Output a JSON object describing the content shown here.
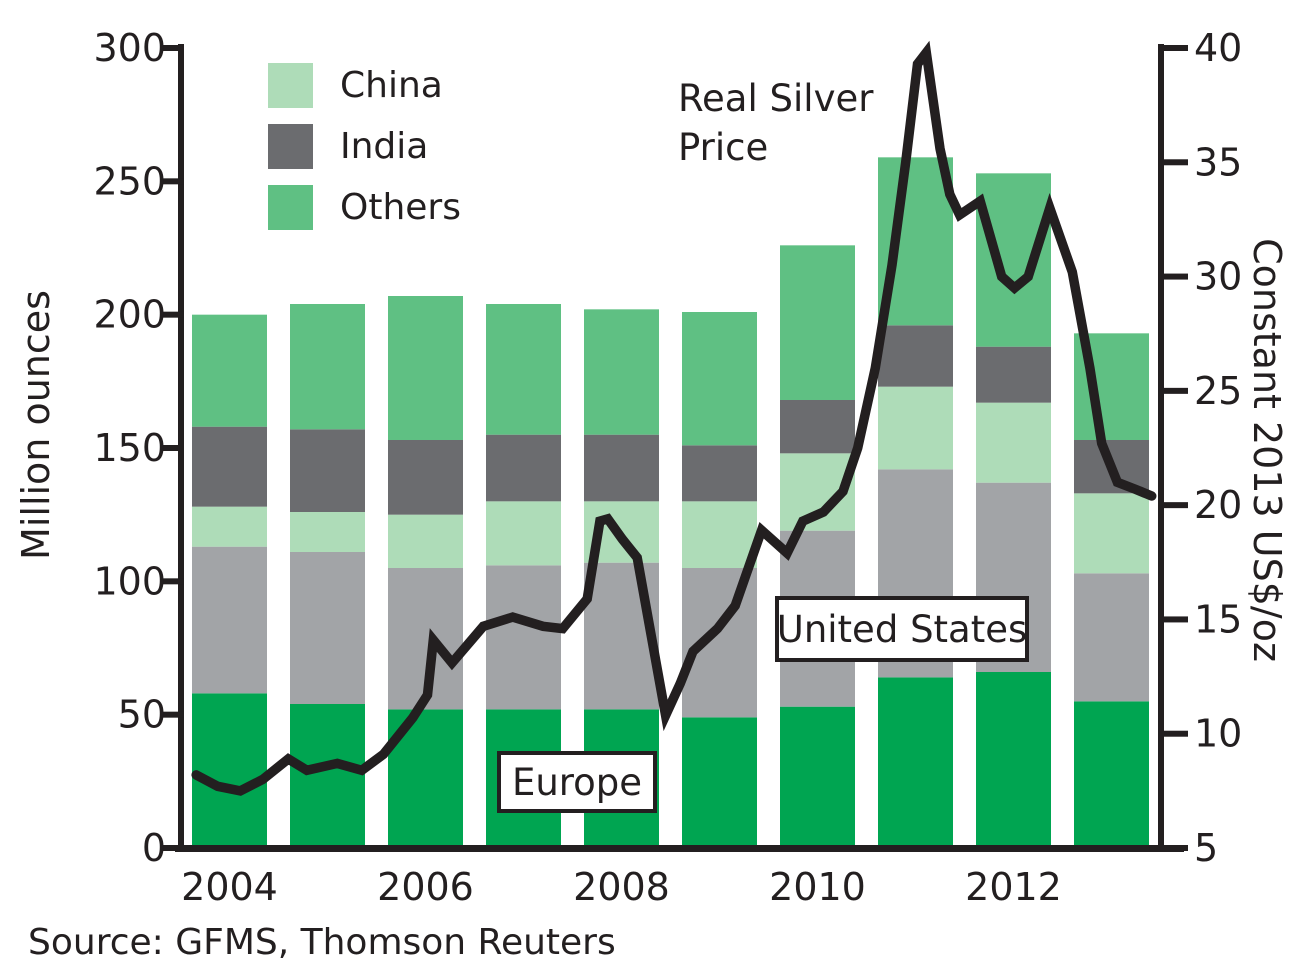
{
  "annotation": {
    "text": "Real Silver Price"
  },
  "region_labels": {
    "europe": "Europe",
    "united_states": "United States"
  },
  "source": "Source: GFMS, Thomson Reuters",
  "legend": [
    {
      "label": "China",
      "color": "#aedcb8"
    },
    {
      "label": "India",
      "color": "#6b6c6f"
    },
    {
      "label": "Others",
      "color": "#5fc083"
    }
  ],
  "axes": {
    "left": {
      "title": "Million ounces",
      "ticks": [
        0,
        50,
        100,
        150,
        200,
        250,
        300
      ],
      "range": [
        0,
        300
      ]
    },
    "right": {
      "title": "Constant 2013 US$/oz",
      "ticks": [
        5,
        10,
        15,
        20,
        25,
        30,
        35,
        40
      ],
      "range": [
        5,
        40
      ]
    },
    "x": {
      "tick_labels": [
        "2004",
        "2006",
        "2008",
        "2010",
        "2012"
      ],
      "tick_years": [
        2004,
        2006,
        2008,
        2010,
        2012
      ]
    }
  },
  "colors": {
    "axis": "#231f20",
    "text": "#231f20",
    "line": "#231f20",
    "europe": "#00a551",
    "united_states": "#a2a4a7",
    "china": "#aedcb8",
    "india": "#6b6c6f",
    "others": "#5fc083"
  },
  "chart_data": {
    "type": "bar+line",
    "title": "",
    "categories": [
      2004,
      2005,
      2006,
      2007,
      2008,
      2009,
      2010,
      2011,
      2012,
      2013
    ],
    "bars_unit": "Million ounces",
    "ylim_left": [
      0,
      300
    ],
    "ylim_right": [
      5,
      40
    ],
    "grid": false,
    "stack_order_bottom_to_top": [
      "Europe",
      "United States",
      "China",
      "India",
      "Others"
    ],
    "series": [
      {
        "name": "Europe",
        "color": "#00a551",
        "values": [
          58,
          54,
          52,
          52,
          52,
          49,
          53,
          64,
          66,
          55
        ]
      },
      {
        "name": "United States",
        "color": "#a2a4a7",
        "values": [
          55,
          57,
          53,
          54,
          55,
          56,
          66,
          78,
          71,
          48
        ]
      },
      {
        "name": "China",
        "color": "#aedcb8",
        "values": [
          15,
          15,
          20,
          24,
          23,
          25,
          29,
          31,
          30,
          30
        ]
      },
      {
        "name": "India",
        "color": "#6b6c6f",
        "values": [
          30,
          31,
          28,
          25,
          25,
          21,
          20,
          23,
          21,
          20
        ]
      },
      {
        "name": "Others",
        "color": "#5fc083",
        "values": [
          42,
          47,
          54,
          49,
          47,
          50,
          58,
          63,
          65,
          40
        ]
      }
    ],
    "totals": [
      200,
      204,
      207,
      204,
      202,
      201,
      226,
      259,
      253,
      193
    ],
    "line": {
      "name": "Real Silver Price",
      "axis": "right",
      "unit": "Constant 2013 US$/oz",
      "color": "#231f20",
      "points": [
        [
          2003.66,
          8.2
        ],
        [
          2003.88,
          7.7
        ],
        [
          2004.11,
          7.5
        ],
        [
          2004.34,
          8.0
        ],
        [
          2004.6,
          8.9
        ],
        [
          2004.79,
          8.4
        ],
        [
          2005.1,
          8.7
        ],
        [
          2005.35,
          8.4
        ],
        [
          2005.57,
          9.1
        ],
        [
          2005.87,
          10.7
        ],
        [
          2006.02,
          11.7
        ],
        [
          2006.08,
          14.1
        ],
        [
          2006.27,
          13.1
        ],
        [
          2006.59,
          14.7
        ],
        [
          2006.89,
          15.1
        ],
        [
          2007.2,
          14.7
        ],
        [
          2007.4,
          14.6
        ],
        [
          2007.65,
          15.9
        ],
        [
          2007.78,
          19.3
        ],
        [
          2007.86,
          19.4
        ],
        [
          2008.01,
          18.5
        ],
        [
          2008.16,
          17.7
        ],
        [
          2008.45,
          10.8
        ],
        [
          2008.6,
          12.2
        ],
        [
          2008.73,
          13.6
        ],
        [
          2008.98,
          14.6
        ],
        [
          2009.16,
          15.6
        ],
        [
          2009.25,
          16.7
        ],
        [
          2009.43,
          18.9
        ],
        [
          2009.69,
          17.9
        ],
        [
          2009.85,
          19.3
        ],
        [
          2010.06,
          19.7
        ],
        [
          2010.26,
          20.6
        ],
        [
          2010.41,
          22.5
        ],
        [
          2010.59,
          26.0
        ],
        [
          2010.76,
          30.5
        ],
        [
          2010.9,
          35.0
        ],
        [
          2011.02,
          39.3
        ],
        [
          2011.11,
          39.8
        ],
        [
          2011.25,
          35.6
        ],
        [
          2011.35,
          33.6
        ],
        [
          2011.45,
          32.7
        ],
        [
          2011.66,
          33.3
        ],
        [
          2011.88,
          30.0
        ],
        [
          2012.01,
          29.5
        ],
        [
          2012.15,
          30.0
        ],
        [
          2012.37,
          33.0
        ],
        [
          2012.6,
          30.2
        ],
        [
          2012.78,
          26.0
        ],
        [
          2012.9,
          22.7
        ],
        [
          2013.06,
          21.0
        ],
        [
          2013.24,
          20.7
        ],
        [
          2013.41,
          20.4
        ]
      ]
    }
  }
}
